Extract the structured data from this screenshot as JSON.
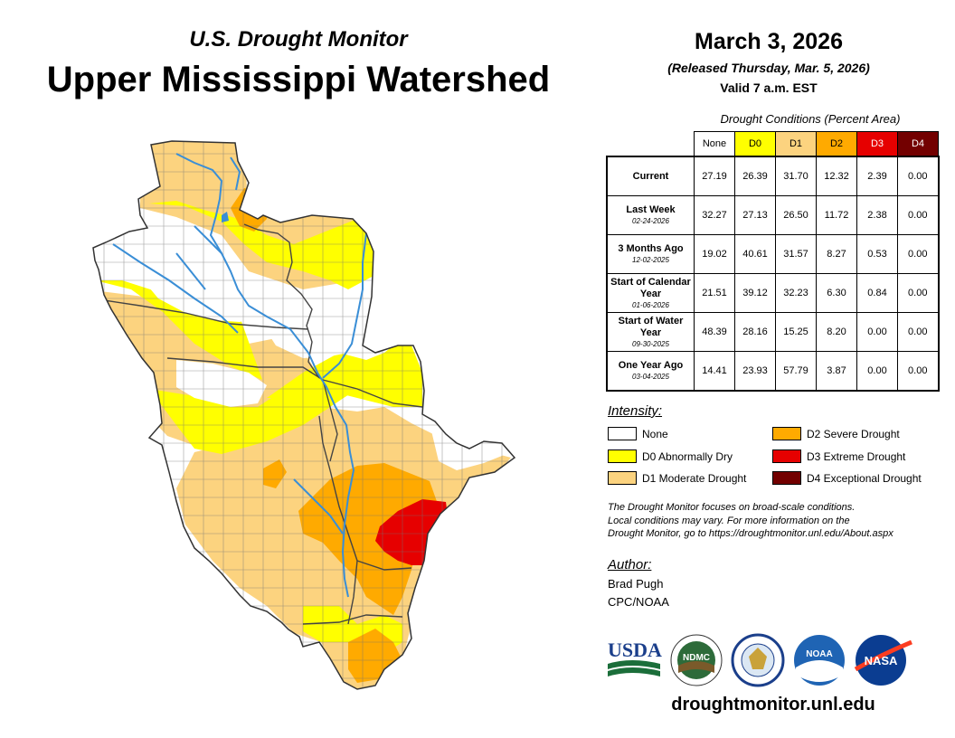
{
  "header": {
    "subtitle": "U.S. Drought Monitor",
    "title": "Upper Mississippi Watershed",
    "date": "March 3, 2026",
    "released": "(Released Thursday, Mar. 5, 2026)",
    "valid": "Valid 7 a.m. EST"
  },
  "table": {
    "caption": "Drought Conditions (Percent Area)",
    "columns": [
      {
        "label": "None",
        "color": "#ffffff",
        "text_color": "#000000"
      },
      {
        "label": "D0",
        "color": "#ffff00",
        "text_color": "#000000"
      },
      {
        "label": "D1",
        "color": "#fcd37f",
        "text_color": "#000000"
      },
      {
        "label": "D2",
        "color": "#ffaa00",
        "text_color": "#000000"
      },
      {
        "label": "D3",
        "color": "#e60000",
        "text_color": "#ffffff"
      },
      {
        "label": "D4",
        "color": "#730000",
        "text_color": "#ffffff"
      }
    ],
    "rows": [
      {
        "label": "Current",
        "date": "",
        "values": [
          "27.19",
          "26.39",
          "31.70",
          "12.32",
          "2.39",
          "0.00"
        ]
      },
      {
        "label": "Last Week",
        "date": "02-24-2026",
        "values": [
          "32.27",
          "27.13",
          "26.50",
          "11.72",
          "2.38",
          "0.00"
        ]
      },
      {
        "label": "3 Months Ago",
        "date": "12-02-2025",
        "values": [
          "19.02",
          "40.61",
          "31.57",
          "8.27",
          "0.53",
          "0.00"
        ]
      },
      {
        "label": "Start of Calendar Year",
        "date": "01-06-2026",
        "values": [
          "21.51",
          "39.12",
          "32.23",
          "6.30",
          "0.84",
          "0.00"
        ]
      },
      {
        "label": "Start of Water Year",
        "date": "09-30-2025",
        "values": [
          "48.39",
          "28.16",
          "15.25",
          "8.20",
          "0.00",
          "0.00"
        ]
      },
      {
        "label": "One Year Ago",
        "date": "03-04-2025",
        "values": [
          "14.41",
          "23.93",
          "57.79",
          "3.87",
          "0.00",
          "0.00"
        ]
      }
    ]
  },
  "legend": {
    "heading": "Intensity:",
    "items": [
      {
        "label": "None",
        "color": "#ffffff"
      },
      {
        "label": "D0 Abnormally Dry",
        "color": "#ffff00"
      },
      {
        "label": "D1 Moderate Drought",
        "color": "#fcd37f"
      },
      {
        "label": "D2 Severe Drought",
        "color": "#ffaa00"
      },
      {
        "label": "D3 Extreme Drought",
        "color": "#e60000"
      },
      {
        "label": "D4 Exceptional Drought",
        "color": "#730000"
      }
    ]
  },
  "note": {
    "line1": "The Drought Monitor focuses on broad-scale conditions.",
    "line2": "Local conditions may vary. For more information on the",
    "line3": "Drought Monitor, go to https://droughtmonitor.unl.edu/About.aspx"
  },
  "author": {
    "heading": "Author:",
    "name": "Brad Pugh",
    "org": "CPC/NOAA"
  },
  "logos": {
    "usda": "USDA",
    "ndmc": "NDMC",
    "noaa": "NOAA",
    "nasa": "NASA"
  },
  "footer": {
    "url": "droughtmonitor.unl.edu"
  },
  "colors": {
    "river": "#3a8ed6",
    "county_line": "#777777",
    "state_line": "#555555"
  }
}
